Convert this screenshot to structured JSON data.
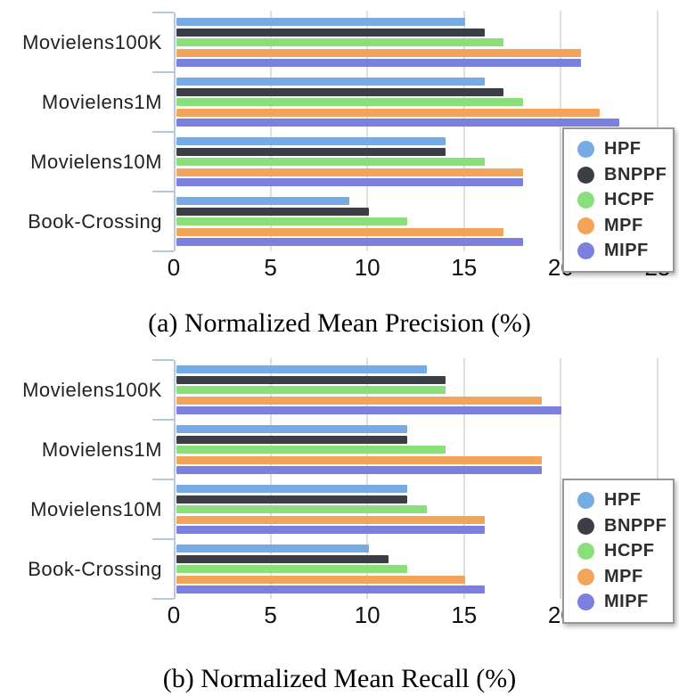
{
  "page": {
    "background": "#ffffff"
  },
  "colors": {
    "gridline": "#dfdfdf",
    "axis": "#bac8de",
    "legend_border": "#979797",
    "text": "#222222"
  },
  "chart_data": [
    {
      "type": "bar",
      "orientation": "horizontal",
      "title": "(a) Normalized Mean Precision (%)",
      "categories": [
        "Movielens100K",
        "Movielens1M",
        "Movielens10M",
        "Book-Crossing"
      ],
      "series": [
        {
          "name": "HPF",
          "color": "#76ACE3",
          "values": [
            15,
            16,
            14,
            9
          ]
        },
        {
          "name": "BNPPF",
          "color": "#3B3E45",
          "values": [
            16,
            17,
            14,
            10
          ]
        },
        {
          "name": "HCPF",
          "color": "#8BDF7B",
          "values": [
            17,
            18,
            16,
            12
          ]
        },
        {
          "name": "MPF",
          "color": "#F3A45B",
          "values": [
            21,
            22,
            18,
            17
          ]
        },
        {
          "name": "MIPF",
          "color": "#7B7FDD",
          "values": [
            21,
            23,
            18,
            18
          ]
        }
      ],
      "xlim": [
        0,
        25
      ],
      "xticks": [
        0,
        5,
        10,
        15,
        20,
        25
      ],
      "grid": true,
      "legend_position": "right-overlay",
      "legend_entries": [
        "HPF",
        "BNPPF",
        "HCPF",
        "MPF",
        "MIPF"
      ]
    },
    {
      "type": "bar",
      "orientation": "horizontal",
      "title": "(b) Normalized Mean Recall (%)",
      "categories": [
        "Movielens100K",
        "Movielens1M",
        "Movielens10M",
        "Book-Crossing"
      ],
      "series": [
        {
          "name": "HPF",
          "color": "#76ACE3",
          "values": [
            13,
            12,
            12,
            10
          ]
        },
        {
          "name": "BNPPF",
          "color": "#3B3E45",
          "values": [
            14,
            12,
            12,
            11
          ]
        },
        {
          "name": "HCPF",
          "color": "#8BDF7B",
          "values": [
            14,
            14,
            13,
            12
          ]
        },
        {
          "name": "MPF",
          "color": "#F3A45B",
          "values": [
            19,
            19,
            16,
            15
          ]
        },
        {
          "name": "MIPF",
          "color": "#7B7FDD",
          "values": [
            20,
            19,
            16,
            16
          ]
        }
      ],
      "xlim": [
        0,
        25
      ],
      "xticks": [
        0,
        5,
        10,
        15,
        20,
        25
      ],
      "grid": true,
      "legend_position": "right-overlay",
      "legend_entries": [
        "HPF",
        "BNPPF",
        "HCPF",
        "MPF",
        "MIPF"
      ]
    }
  ]
}
